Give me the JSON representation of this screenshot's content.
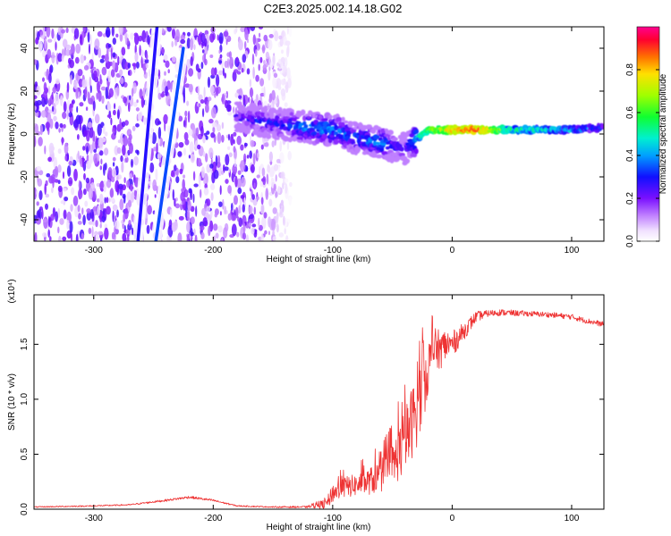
{
  "title": "C2E3.2025.002.14.18.G02",
  "chart_data": [
    {
      "type": "heatmap",
      "xlabel": "Height of straight line (km)",
      "ylabel": "Frequency (Hz)",
      "xlim": [
        -350,
        127
      ],
      "ylim": [
        -50,
        50
      ],
      "xticks": [
        -300,
        -200,
        -100,
        0,
        100
      ],
      "yticks": [
        -40,
        -20,
        0,
        20,
        40
      ],
      "colorbar": {
        "label": "Normalized spectral amplitude",
        "range": [
          0,
          1
        ],
        "ticks": [
          "0.0",
          "0.2",
          "0.4",
          "0.6",
          "0.8"
        ]
      },
      "features": [
        {
          "name": "noise region",
          "x_range": [
            -350,
            -150
          ],
          "amplitude": 0.15
        },
        {
          "name": "straight line 1",
          "x": [
            -263,
            -247
          ],
          "y": [
            -50,
            50
          ]
        },
        {
          "name": "straight line 2",
          "x": [
            -248,
            -225
          ],
          "y": [
            -50,
            40
          ]
        },
        {
          "name": "signal trace",
          "x": [
            -180,
            -150,
            -120,
            -100,
            -80,
            -60,
            -40,
            -20,
            0,
            20,
            50,
            100,
            127
          ],
          "y": [
            8,
            5,
            3,
            2,
            -2,
            -4,
            -7,
            2,
            2,
            2,
            2,
            2,
            3
          ],
          "amplitude": [
            0.3,
            0.35,
            0.45,
            0.45,
            0.4,
            0.45,
            0.3,
            0.7,
            0.9,
            1.0,
            0.6,
            0.5,
            0.4
          ]
        }
      ]
    },
    {
      "type": "line",
      "xlabel": "Height of straight line (km)",
      "ylabel": "SNR (10 * v/v)",
      "multiplier": "(x10⁴)",
      "xlim": [
        -350,
        127
      ],
      "ylim": [
        0,
        1.95
      ],
      "xticks": [
        -300,
        -200,
        -100,
        0,
        100
      ],
      "yticks": [
        0.0,
        0.5,
        1.0,
        1.5
      ],
      "series": [
        {
          "name": "SNR",
          "color": "#ee3333",
          "x": [
            -350,
            -300,
            -270,
            -240,
            -220,
            -200,
            -180,
            -150,
            -120,
            -105,
            -100,
            -90,
            -80,
            -70,
            -60,
            -50,
            -40,
            -30,
            -25,
            -20,
            -15,
            -10,
            -5,
            0,
            10,
            20,
            30,
            40,
            60,
            80,
            100,
            110,
            127
          ],
          "y": [
            0.02,
            0.03,
            0.04,
            0.08,
            0.11,
            0.08,
            0.03,
            0.02,
            0.02,
            0.05,
            0.15,
            0.2,
            0.22,
            0.25,
            0.3,
            0.4,
            0.6,
            0.9,
            1.1,
            1.3,
            1.45,
            1.45,
            1.5,
            1.5,
            1.62,
            1.75,
            1.78,
            1.79,
            1.78,
            1.77,
            1.75,
            1.72,
            1.68
          ],
          "noise": [
            0.005,
            0.006,
            0.006,
            0.01,
            0.012,
            0.01,
            0.006,
            0.006,
            0.01,
            0.05,
            0.09,
            0.1,
            0.1,
            0.12,
            0.15,
            0.2,
            0.3,
            0.35,
            0.35,
            0.25,
            0.2,
            0.18,
            0.15,
            0.12,
            0.08,
            0.05,
            0.03,
            0.03,
            0.025,
            0.025,
            0.025,
            0.025,
            0.025
          ]
        }
      ]
    }
  ]
}
